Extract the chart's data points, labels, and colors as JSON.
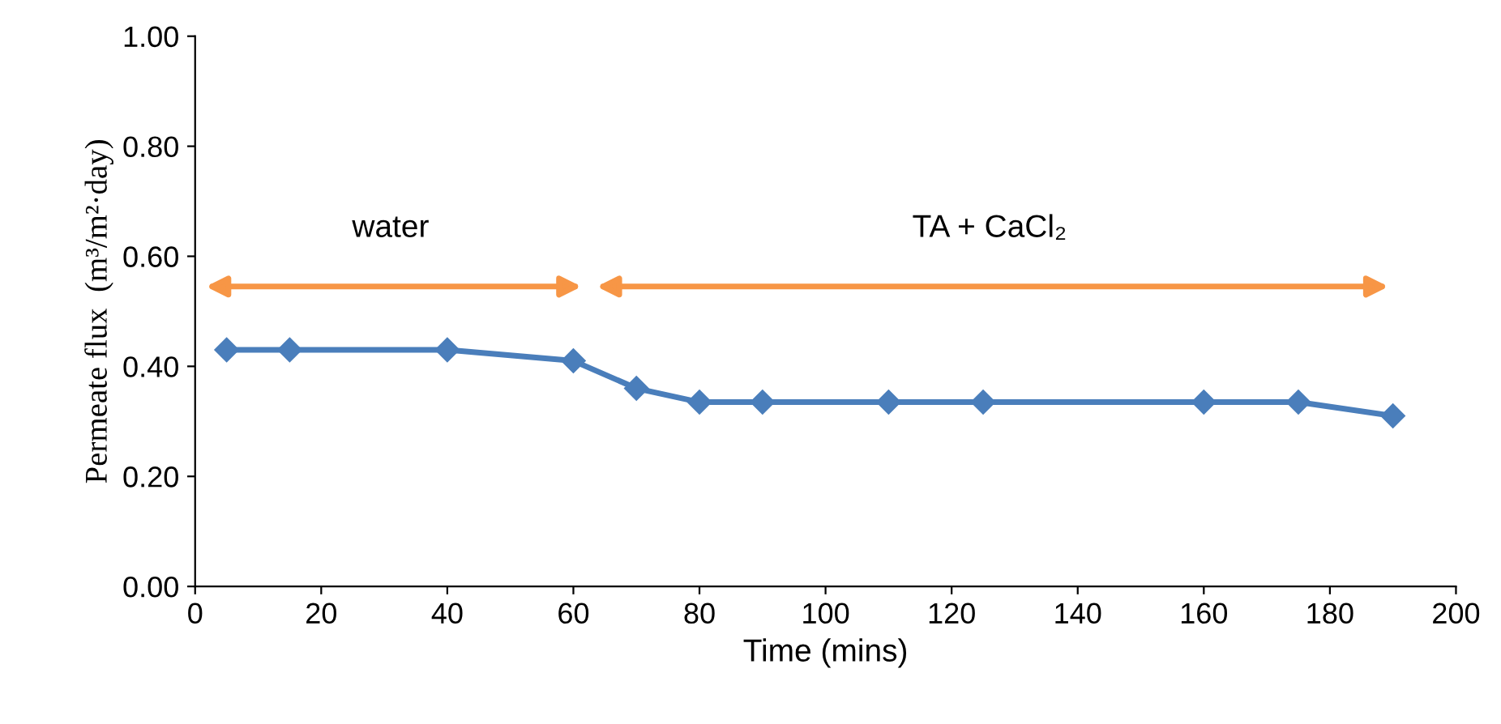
{
  "chart_data": {
    "type": "line",
    "xlabel": "Time (mins)",
    "ylabel": "Permeate flux  (m³/m²·day)",
    "x": [
      5,
      15,
      40,
      60,
      70,
      80,
      90,
      110,
      125,
      160,
      175,
      190
    ],
    "series": [
      {
        "color": "#4a7ebb",
        "values": [
          0.43,
          0.43,
          0.43,
          0.41,
          0.36,
          0.335,
          0.335,
          0.335,
          0.335,
          0.335,
          0.335,
          0.31
        ]
      }
    ],
    "xlim": [
      0,
      200
    ],
    "xticks": [
      0,
      20,
      40,
      60,
      80,
      100,
      120,
      140,
      160,
      180,
      200
    ],
    "ylim": [
      0,
      1
    ],
    "yticks": [
      {
        "value": 0,
        "label": "0.00"
      },
      {
        "value": 0.2,
        "label": "0.20"
      },
      {
        "value": 0.4,
        "label": "0.40"
      },
      {
        "value": 0.6,
        "label": "0.60"
      },
      {
        "value": 0.8,
        "label": "0.80"
      },
      {
        "value": 1,
        "label": "1.00"
      }
    ],
    "annotations": [
      "water",
      "TA + CaCl₂"
    ],
    "marker": "diamond",
    "line_style": "solid",
    "grid": false,
    "legend": false
  }
}
